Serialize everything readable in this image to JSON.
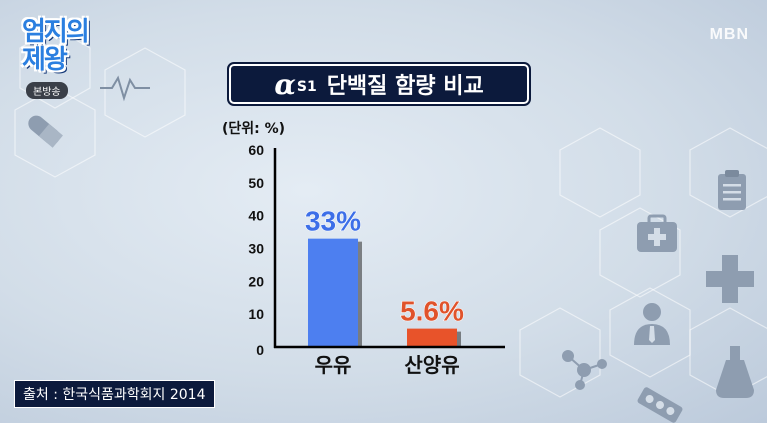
{
  "logo": {
    "main_text": "엄지의 제왕",
    "badge": "본방송"
  },
  "broadcaster": "MBN",
  "title": {
    "alpha": "α",
    "sub": "S1",
    "text": "단백질 함량 비교"
  },
  "unit_label": "(단위: %)",
  "source": "출처 : 한국식품과학회지 2014",
  "chart_data": {
    "type": "bar",
    "categories": [
      "우유",
      "산양유"
    ],
    "values": [
      33,
      5.6
    ],
    "data_labels": [
      "33%",
      "5.6%"
    ],
    "bar_colors": [
      "#4d7ff0",
      "#e8532a"
    ],
    "label_colors": [
      "#3d6fe8",
      "#e0532b"
    ],
    "yticks": [
      "0",
      "10",
      "20",
      "30",
      "40",
      "50",
      "60"
    ],
    "ylim": [
      0,
      60
    ],
    "title": "",
    "xlabel": "",
    "ylabel": ""
  }
}
